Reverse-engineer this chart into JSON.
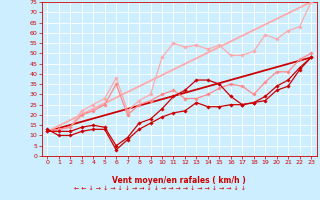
{
  "xlabel": "Vent moyen/en rafales ( km/h )",
  "bg_color": "#cceeff",
  "grid_color": "#aaddcc",
  "xlabel_color": "#cc0000",
  "tick_color": "#cc0000",
  "xlim": [
    -0.5,
    23.5
  ],
  "ylim": [
    0,
    75
  ],
  "yticks": [
    0,
    5,
    10,
    15,
    20,
    25,
    30,
    35,
    40,
    45,
    50,
    55,
    60,
    65,
    70,
    75
  ],
  "xticks": [
    0,
    1,
    2,
    3,
    4,
    5,
    6,
    7,
    8,
    9,
    10,
    11,
    12,
    13,
    14,
    15,
    16,
    17,
    18,
    19,
    20,
    21,
    22,
    23
  ],
  "lines": [
    {
      "x": [
        0,
        1,
        2,
        3,
        4,
        5,
        6,
        7,
        8,
        9,
        10,
        11,
        12,
        13,
        14,
        15,
        16,
        17,
        18,
        19,
        20,
        21,
        22,
        23
      ],
      "y": [
        13,
        10,
        10,
        12,
        13,
        13,
        3,
        8,
        13,
        16,
        19,
        21,
        22,
        26,
        24,
        24,
        25,
        25,
        26,
        27,
        32,
        34,
        42,
        48
      ],
      "color": "#cc0000",
      "lw": 0.9,
      "marker": "D",
      "ms": 1.8,
      "zorder": 5
    },
    {
      "x": [
        0,
        1,
        2,
        3,
        4,
        5,
        6,
        7,
        8,
        9,
        10,
        11,
        12,
        13,
        14,
        15,
        16,
        17,
        18,
        19,
        20,
        21,
        22,
        23
      ],
      "y": [
        12,
        12,
        12,
        14,
        15,
        14,
        5,
        9,
        16,
        18,
        23,
        29,
        32,
        37,
        37,
        35,
        29,
        25,
        26,
        29,
        34,
        37,
        43,
        48
      ],
      "color": "#cc0000",
      "lw": 0.9,
      "marker": "D",
      "ms": 1.8,
      "zorder": 5
    },
    {
      "x": [
        0,
        1,
        2,
        3,
        4,
        5,
        6,
        7,
        8,
        9,
        10,
        11,
        12,
        13,
        14,
        15,
        16,
        17,
        18,
        19,
        20,
        21,
        22,
        23
      ],
      "y": [
        12,
        13,
        14,
        20,
        22,
        25,
        35,
        20,
        25,
        27,
        30,
        32,
        28,
        28,
        30,
        33,
        35,
        34,
        30,
        36,
        41,
        41,
        47,
        50
      ],
      "color": "#ff8888",
      "lw": 0.9,
      "marker": "D",
      "ms": 1.8,
      "zorder": 4
    },
    {
      "x": [
        0,
        1,
        2,
        3,
        4,
        5,
        6,
        7,
        8,
        9,
        10,
        11,
        12,
        13,
        14,
        15,
        16,
        17,
        18,
        19,
        20,
        21,
        22,
        23
      ],
      "y": [
        12,
        13,
        14,
        22,
        25,
        28,
        38,
        22,
        27,
        30,
        48,
        55,
        53,
        54,
        52,
        54,
        49,
        49,
        51,
        59,
        57,
        61,
        63,
        75
      ],
      "color": "#ffaaaa",
      "lw": 0.9,
      "marker": "D",
      "ms": 1.8,
      "zorder": 3
    },
    {
      "x": [
        0,
        23
      ],
      "y": [
        12,
        48
      ],
      "color": "#cc0000",
      "lw": 1.3,
      "marker": null,
      "ms": 0,
      "zorder": 2
    },
    {
      "x": [
        0,
        23
      ],
      "y": [
        12,
        75
      ],
      "color": "#ffaaaa",
      "lw": 1.3,
      "marker": null,
      "ms": 0,
      "zorder": 2
    }
  ]
}
